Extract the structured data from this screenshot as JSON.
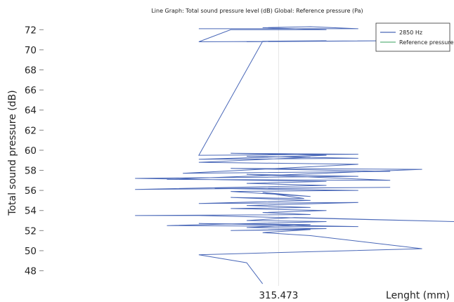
{
  "chart_data": {
    "type": "line",
    "title": "Line Graph: Total sound pressure level (dB)  Global: Reference pressure (Pa)",
    "xlabel": "Lenght (mm)",
    "ylabel": "Total sound pressure (dB)",
    "x_tick_labels": [
      "315.473"
    ],
    "y_ticks": [
      48,
      50,
      52,
      54,
      56,
      58,
      60,
      62,
      64,
      66,
      68,
      70,
      72
    ],
    "ylim": [
      46.5,
      73.0
    ],
    "grid": true,
    "legend_position": "top-right",
    "legend": [
      {
        "name": "2850 Hz",
        "color": "#4a68b8"
      },
      {
        "name": "Reference pressure",
        "color": "#5fb57d"
      }
    ],
    "series": [
      {
        "name": "2850 Hz",
        "color": "#4a68b8",
        "points": [
          [
            -2.5,
            72.1
          ],
          [
            2.5,
            72.1
          ],
          [
            1.0,
            72.3
          ],
          [
            -0.5,
            72.2
          ],
          [
            1.5,
            72.0
          ],
          [
            -1.5,
            72.0
          ],
          [
            -2.5,
            70.8
          ],
          [
            3.5,
            70.9
          ],
          [
            -1.0,
            70.8
          ],
          [
            1.5,
            70.9
          ],
          [
            -0.5,
            70.85
          ],
          [
            -2.5,
            59.5
          ],
          [
            2.5,
            59.6
          ],
          [
            -1.5,
            59.7
          ],
          [
            1.5,
            59.5
          ],
          [
            -2.5,
            59.1
          ],
          [
            2.5,
            59.2
          ],
          [
            -1.0,
            59.4
          ],
          [
            1.0,
            59.3
          ],
          [
            -2.5,
            58.8
          ],
          [
            2.5,
            58.6
          ],
          [
            -3.0,
            57.7
          ],
          [
            3.5,
            57.9
          ],
          [
            -1.5,
            58.2
          ],
          [
            4.5,
            58.1
          ],
          [
            -3.5,
            57.1
          ],
          [
            3.5,
            57.0
          ],
          [
            -1.0,
            57.6
          ],
          [
            2.5,
            57.4
          ],
          [
            -4.5,
            57.2
          ],
          [
            1.5,
            56.9
          ],
          [
            -1.0,
            56.7
          ],
          [
            1.5,
            56.5
          ],
          [
            -4.5,
            56.1
          ],
          [
            3.5,
            56.3
          ],
          [
            -2.0,
            56.2
          ],
          [
            2.5,
            56.0
          ],
          [
            -1.5,
            55.9
          ],
          [
            1.0,
            55.4
          ],
          [
            -0.5,
            55.8
          ],
          [
            0.8,
            55.2
          ],
          [
            -1.5,
            55.3
          ],
          [
            1.0,
            55.0
          ],
          [
            -2.5,
            54.7
          ],
          [
            2.5,
            54.8
          ],
          [
            -1.0,
            54.5
          ],
          [
            1.0,
            54.3
          ],
          [
            -1.5,
            54.2
          ],
          [
            1.5,
            54.0
          ],
          [
            -0.5,
            53.8
          ],
          [
            1.0,
            53.6
          ],
          [
            -4.5,
            53.5
          ],
          [
            -2.5,
            53.5
          ],
          [
            5.5,
            52.9
          ],
          [
            0.5,
            53.3
          ],
          [
            -1.0,
            53.0
          ],
          [
            1.5,
            52.9
          ],
          [
            -3.5,
            52.5
          ],
          [
            2.5,
            52.4
          ],
          [
            -2.5,
            52.7
          ],
          [
            1.0,
            52.6
          ],
          [
            -1.0,
            52.3
          ],
          [
            1.5,
            52.2
          ],
          [
            -1.5,
            52.0
          ],
          [
            1.0,
            52.1
          ],
          [
            -0.5,
            51.8
          ],
          [
            1.0,
            51.5
          ],
          [
            4.5,
            50.2
          ],
          [
            -2.5,
            49.6
          ],
          [
            -1.0,
            48.8
          ],
          [
            -0.5,
            46.7
          ]
        ]
      },
      {
        "name": "Reference pressure",
        "color": "#5fb57d",
        "points": []
      }
    ]
  }
}
